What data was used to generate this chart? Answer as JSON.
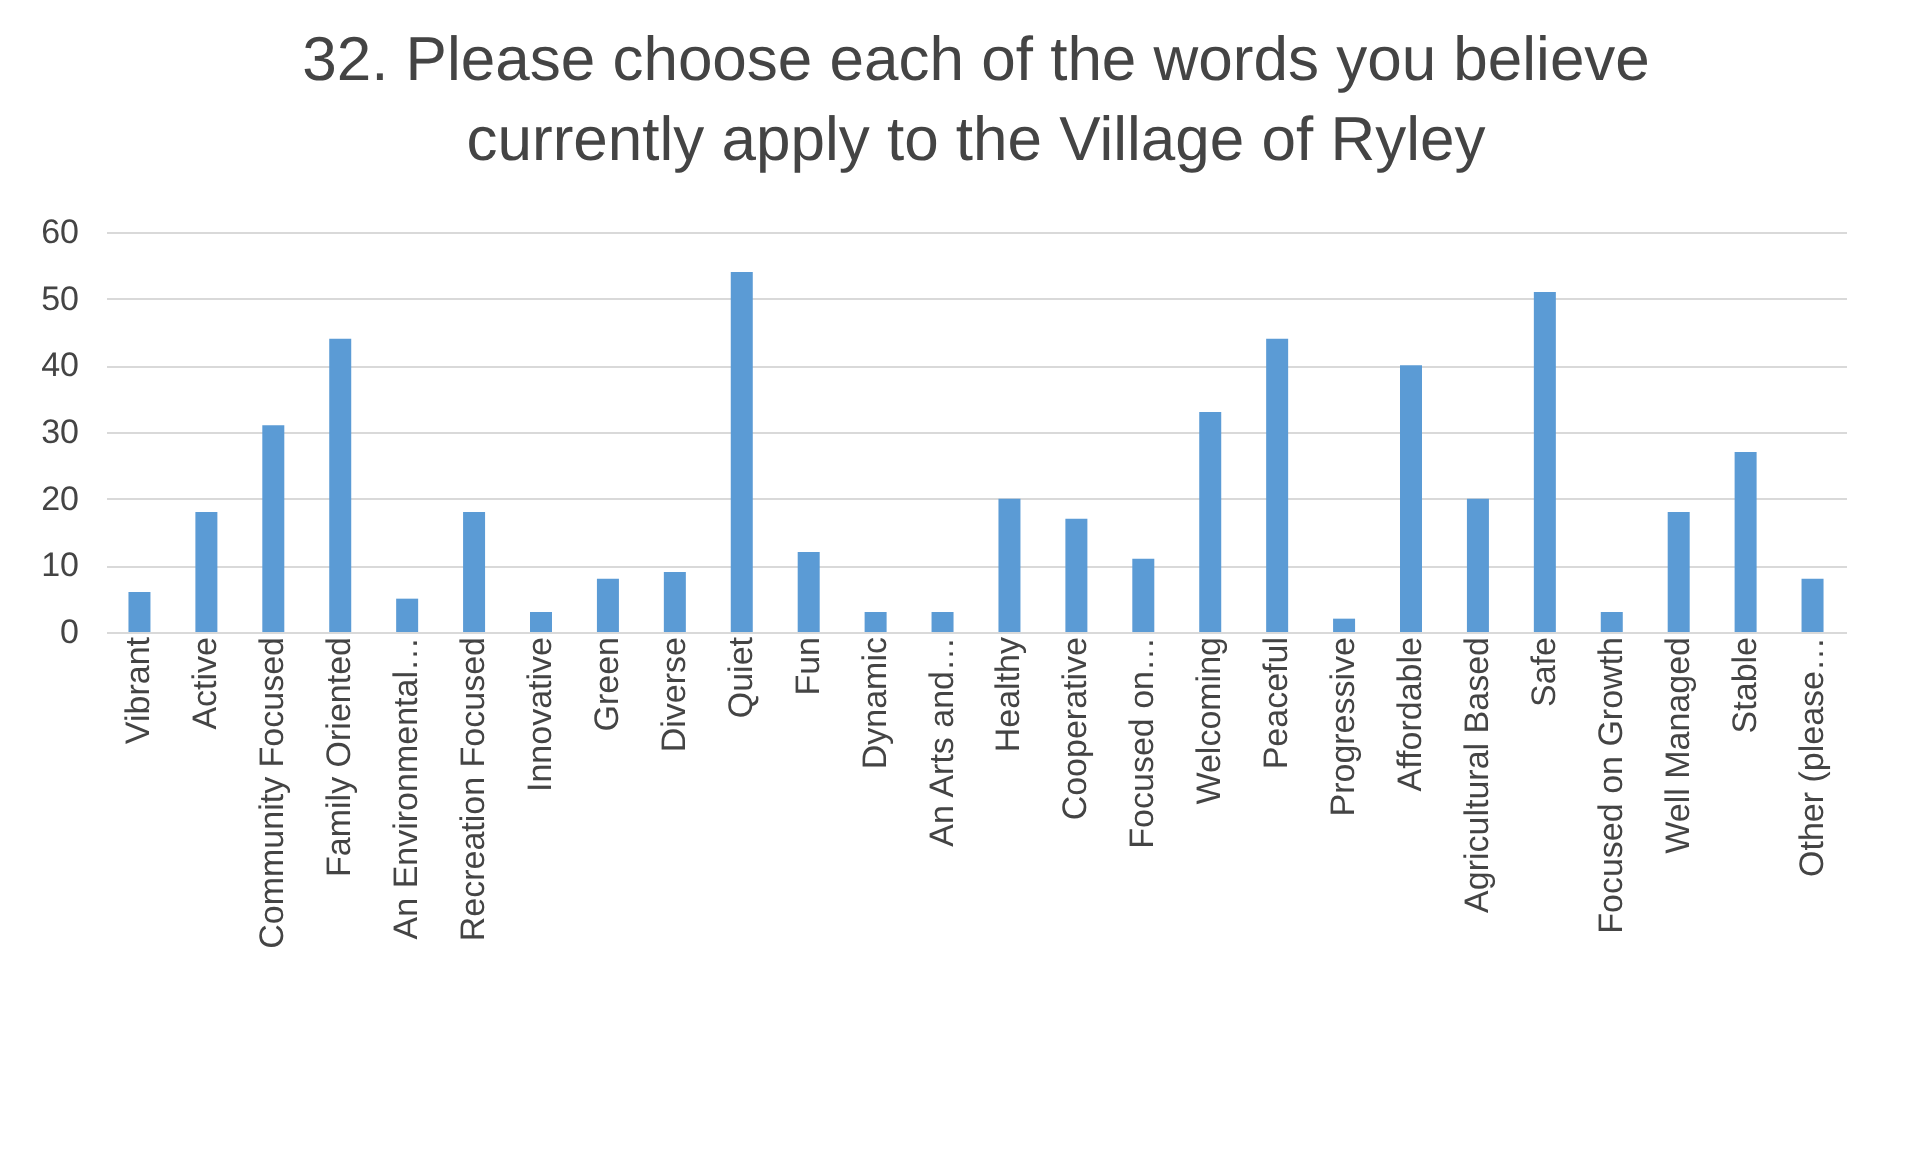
{
  "chart_data": {
    "type": "bar",
    "title": "32. Please choose each of the words you believe currently apply to the Village of Ryley",
    "categories": [
      "Vibrant",
      "Active",
      "Community Focused",
      "Family Oriented",
      "An Environmental…",
      "Recreation Focused",
      "Innovative",
      "Green",
      "Diverse",
      "Quiet",
      "Fun",
      "Dynamic",
      "An Arts and…",
      "Healthy",
      "Cooperative",
      "Focused on…",
      "Welcoming",
      "Peaceful",
      "Progressive",
      "Affordable",
      "Agricultural Based",
      "Safe",
      "Focused on Growth",
      "Well Managed",
      "Stable",
      "Other (please…"
    ],
    "values": [
      6,
      18,
      31,
      44,
      5,
      18,
      3,
      8,
      9,
      54,
      12,
      3,
      3,
      20,
      17,
      11,
      33,
      44,
      2,
      40,
      20,
      51,
      3,
      18,
      27,
      8
    ],
    "color": "#5b9bd5",
    "ylim": [
      0,
      60
    ],
    "yticks": [
      0,
      10,
      20,
      30,
      40,
      50,
      60
    ],
    "grid": "y"
  }
}
